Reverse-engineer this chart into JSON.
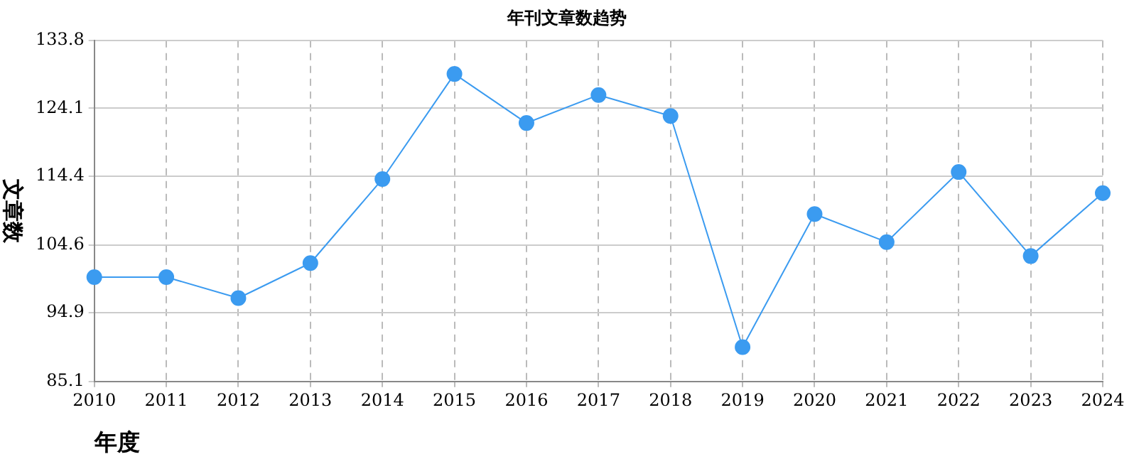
{
  "chart_data": {
    "type": "line",
    "title": "年刊文章数趋势",
    "xlabel": "年度",
    "ylabel": "文章数",
    "categories": [
      "2010",
      "2011",
      "2012",
      "2013",
      "2014",
      "2015",
      "2016",
      "2017",
      "2018",
      "2019",
      "2020",
      "2021",
      "2022",
      "2023",
      "2024"
    ],
    "series": [
      {
        "color": "#3b9bf0",
        "values": [
          100,
          100,
          97,
          102,
          114,
          129,
          122,
          126,
          123,
          90,
          109,
          105,
          115,
          103,
          112
        ]
      }
    ],
    "ylim": [
      85.1,
      133.8
    ],
    "yticks": [
      85.1,
      94.9,
      104.6,
      114.4,
      124.1,
      133.8
    ],
    "grid": true,
    "marker": "circle",
    "line_style": "solid",
    "legend": false
  }
}
